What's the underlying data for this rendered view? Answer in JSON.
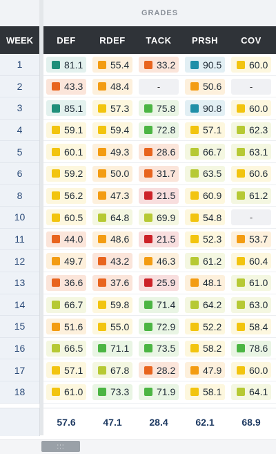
{
  "header": {
    "group_label": "GRADES",
    "week_label": "WEEK",
    "columns": [
      "DEF",
      "RDEF",
      "TACK",
      "PRSH",
      "COV"
    ]
  },
  "colors": {
    "elite_teal": "#1f8f7a",
    "high_green": "#4bb543",
    "good_lime": "#b6c934",
    "avg_yellow": "#f2c40f",
    "below_orange": "#f39c12",
    "poor_orange": "#e8641e",
    "bad_red": "#cc2128",
    "elite_blue": "#1f8fa8"
  },
  "rows": [
    {
      "week": "1",
      "cells": [
        [
          "81.1",
          "elite_teal"
        ],
        [
          "55.4",
          "below_orange"
        ],
        [
          "33.2",
          "poor_orange"
        ],
        [
          "90.5",
          "elite_blue"
        ],
        [
          "60.0",
          "avg_yellow"
        ]
      ]
    },
    {
      "week": "2",
      "cells": [
        [
          "43.3",
          "poor_orange"
        ],
        [
          "48.4",
          "below_orange"
        ],
        [
          "-",
          ""
        ],
        [
          "50.6",
          "below_orange"
        ],
        [
          "-",
          ""
        ]
      ]
    },
    {
      "week": "3",
      "cells": [
        [
          "85.1",
          "elite_teal"
        ],
        [
          "57.3",
          "avg_yellow"
        ],
        [
          "75.8",
          "high_green"
        ],
        [
          "90.8",
          "elite_blue"
        ],
        [
          "60.0",
          "avg_yellow"
        ]
      ]
    },
    {
      "week": "4",
      "cells": [
        [
          "59.1",
          "avg_yellow"
        ],
        [
          "59.4",
          "avg_yellow"
        ],
        [
          "72.8",
          "high_green"
        ],
        [
          "57.1",
          "avg_yellow"
        ],
        [
          "62.3",
          "good_lime"
        ]
      ]
    },
    {
      "week": "5",
      "cells": [
        [
          "60.1",
          "avg_yellow"
        ],
        [
          "49.3",
          "below_orange"
        ],
        [
          "28.6",
          "poor_orange"
        ],
        [
          "66.7",
          "good_lime"
        ],
        [
          "63.1",
          "good_lime"
        ]
      ]
    },
    {
      "week": "6",
      "cells": [
        [
          "59.2",
          "avg_yellow"
        ],
        [
          "50.0",
          "below_orange"
        ],
        [
          "31.7",
          "poor_orange"
        ],
        [
          "63.5",
          "good_lime"
        ],
        [
          "60.6",
          "avg_yellow"
        ]
      ]
    },
    {
      "week": "8",
      "cells": [
        [
          "56.2",
          "avg_yellow"
        ],
        [
          "47.3",
          "below_orange"
        ],
        [
          "21.5",
          "bad_red"
        ],
        [
          "60.9",
          "avg_yellow"
        ],
        [
          "61.2",
          "good_lime"
        ]
      ]
    },
    {
      "week": "10",
      "cells": [
        [
          "60.5",
          "avg_yellow"
        ],
        [
          "64.8",
          "good_lime"
        ],
        [
          "69.9",
          "good_lime"
        ],
        [
          "54.8",
          "avg_yellow"
        ],
        [
          "-",
          ""
        ]
      ]
    },
    {
      "week": "11",
      "cells": [
        [
          "44.0",
          "poor_orange"
        ],
        [
          "48.6",
          "below_orange"
        ],
        [
          "21.5",
          "bad_red"
        ],
        [
          "52.3",
          "avg_yellow"
        ],
        [
          "53.7",
          "below_orange"
        ]
      ]
    },
    {
      "week": "12",
      "cells": [
        [
          "49.7",
          "below_orange"
        ],
        [
          "43.2",
          "poor_orange"
        ],
        [
          "46.3",
          "below_orange"
        ],
        [
          "61.2",
          "good_lime"
        ],
        [
          "60.4",
          "avg_yellow"
        ]
      ]
    },
    {
      "week": "13",
      "cells": [
        [
          "36.6",
          "poor_orange"
        ],
        [
          "37.6",
          "poor_orange"
        ],
        [
          "25.9",
          "bad_red"
        ],
        [
          "48.1",
          "below_orange"
        ],
        [
          "61.0",
          "good_lime"
        ]
      ]
    },
    {
      "week": "14",
      "cells": [
        [
          "66.7",
          "good_lime"
        ],
        [
          "59.8",
          "avg_yellow"
        ],
        [
          "71.4",
          "high_green"
        ],
        [
          "64.2",
          "good_lime"
        ],
        [
          "63.0",
          "good_lime"
        ]
      ]
    },
    {
      "week": "15",
      "cells": [
        [
          "51.6",
          "below_orange"
        ],
        [
          "55.0",
          "avg_yellow"
        ],
        [
          "72.9",
          "high_green"
        ],
        [
          "52.2",
          "avg_yellow"
        ],
        [
          "58.4",
          "avg_yellow"
        ]
      ]
    },
    {
      "week": "16",
      "cells": [
        [
          "66.5",
          "good_lime"
        ],
        [
          "71.1",
          "high_green"
        ],
        [
          "73.5",
          "high_green"
        ],
        [
          "58.2",
          "avg_yellow"
        ],
        [
          "78.6",
          "high_green"
        ]
      ]
    },
    {
      "week": "17",
      "cells": [
        [
          "57.1",
          "avg_yellow"
        ],
        [
          "67.8",
          "good_lime"
        ],
        [
          "28.2",
          "poor_orange"
        ],
        [
          "47.9",
          "below_orange"
        ],
        [
          "60.0",
          "avg_yellow"
        ]
      ]
    },
    {
      "week": "18",
      "cells": [
        [
          "61.0",
          "avg_yellow"
        ],
        [
          "73.3",
          "high_green"
        ],
        [
          "71.9",
          "high_green"
        ],
        [
          "58.1",
          "avg_yellow"
        ],
        [
          "64.1",
          "good_lime"
        ]
      ]
    }
  ],
  "totals": [
    "57.6",
    "47.1",
    "28.4",
    "62.1",
    "68.9"
  ],
  "scrollbar": {
    "grip": ":::"
  }
}
